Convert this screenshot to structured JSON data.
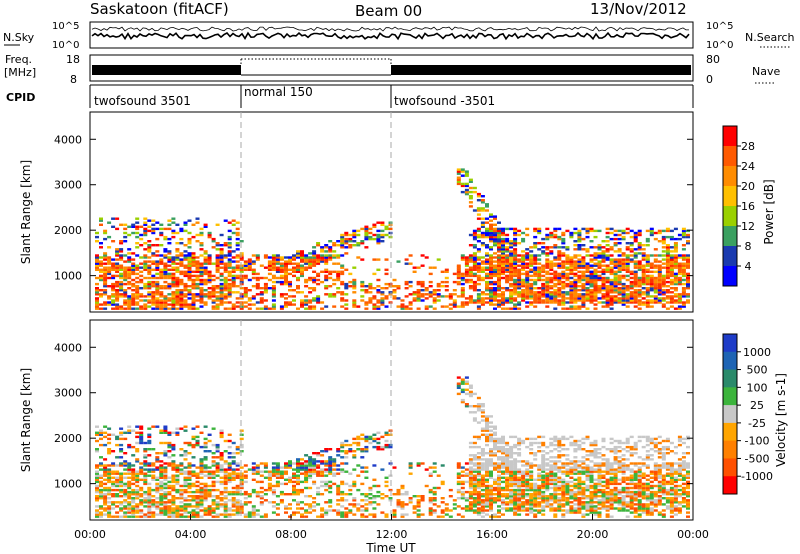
{
  "header": {
    "station": "Saskatoon (fitACF)",
    "beam": "Beam 00",
    "date": "13/Nov/2012"
  },
  "chart_data": [
    {
      "type": "line",
      "panel": "noise",
      "left_label": "N.Sky",
      "right_label": "N.Search",
      "left_ticks": [
        "10^5",
        "10^0"
      ],
      "right_ticks": [
        "10^5",
        "10^0"
      ]
    },
    {
      "type": "line",
      "panel": "frequency-nave",
      "left_label_1": "Freq.",
      "left_label_2": "[MHz]",
      "right_label": "Nave",
      "left_ticks": [
        "18",
        "8"
      ],
      "right_ticks": [
        "80",
        "0"
      ]
    },
    {
      "type": "table",
      "panel": "cpid",
      "label": "CPID",
      "segments": [
        {
          "name": "twofsound 3501",
          "start_h": 0,
          "end_h": 6
        },
        {
          "name": "normal 150",
          "start_h": 6,
          "end_h": 12
        },
        {
          "name": "twofsound -3501",
          "start_h": 12,
          "end_h": 24
        }
      ]
    },
    {
      "type": "heatmap",
      "panel": "power",
      "ylabel": "Slant Range [km]",
      "ylim": [
        200,
        4600
      ],
      "yticks": [
        1000,
        2000,
        3000,
        4000
      ],
      "colorbar_label": "Power [dB]",
      "colorbar_ticks": [
        28,
        24,
        20,
        16,
        12,
        8,
        4
      ],
      "colorbar_colors": [
        "#ff0000",
        "#ff5a00",
        "#ff8c00",
        "#ffc000",
        "#9ad000",
        "#3aa060",
        "#1a3ab0",
        "#0000ff"
      ]
    },
    {
      "type": "heatmap",
      "panel": "velocity",
      "ylabel": "Slant Range [km]",
      "ylim": [
        200,
        4600
      ],
      "yticks": [
        1000,
        2000,
        3000,
        4000
      ],
      "colorbar_label": "Velocity [m s-1]",
      "colorbar_ticks": [
        "1000",
        "500",
        "100",
        "25",
        "-25",
        "-100",
        "-500",
        "-1000"
      ],
      "colorbar_colors": [
        "#1e3cc8",
        "#1e64b4",
        "#2a8a6a",
        "#3cb43c",
        "#c8c8c8",
        "#ffa500",
        "#ff8000",
        "#ff5000",
        "#ff0000"
      ],
      "xlabel": "Time UT",
      "xticks": [
        "00:00",
        "04:00",
        "08:00",
        "12:00",
        "16:00",
        "20:00",
        "00:00"
      ]
    }
  ]
}
